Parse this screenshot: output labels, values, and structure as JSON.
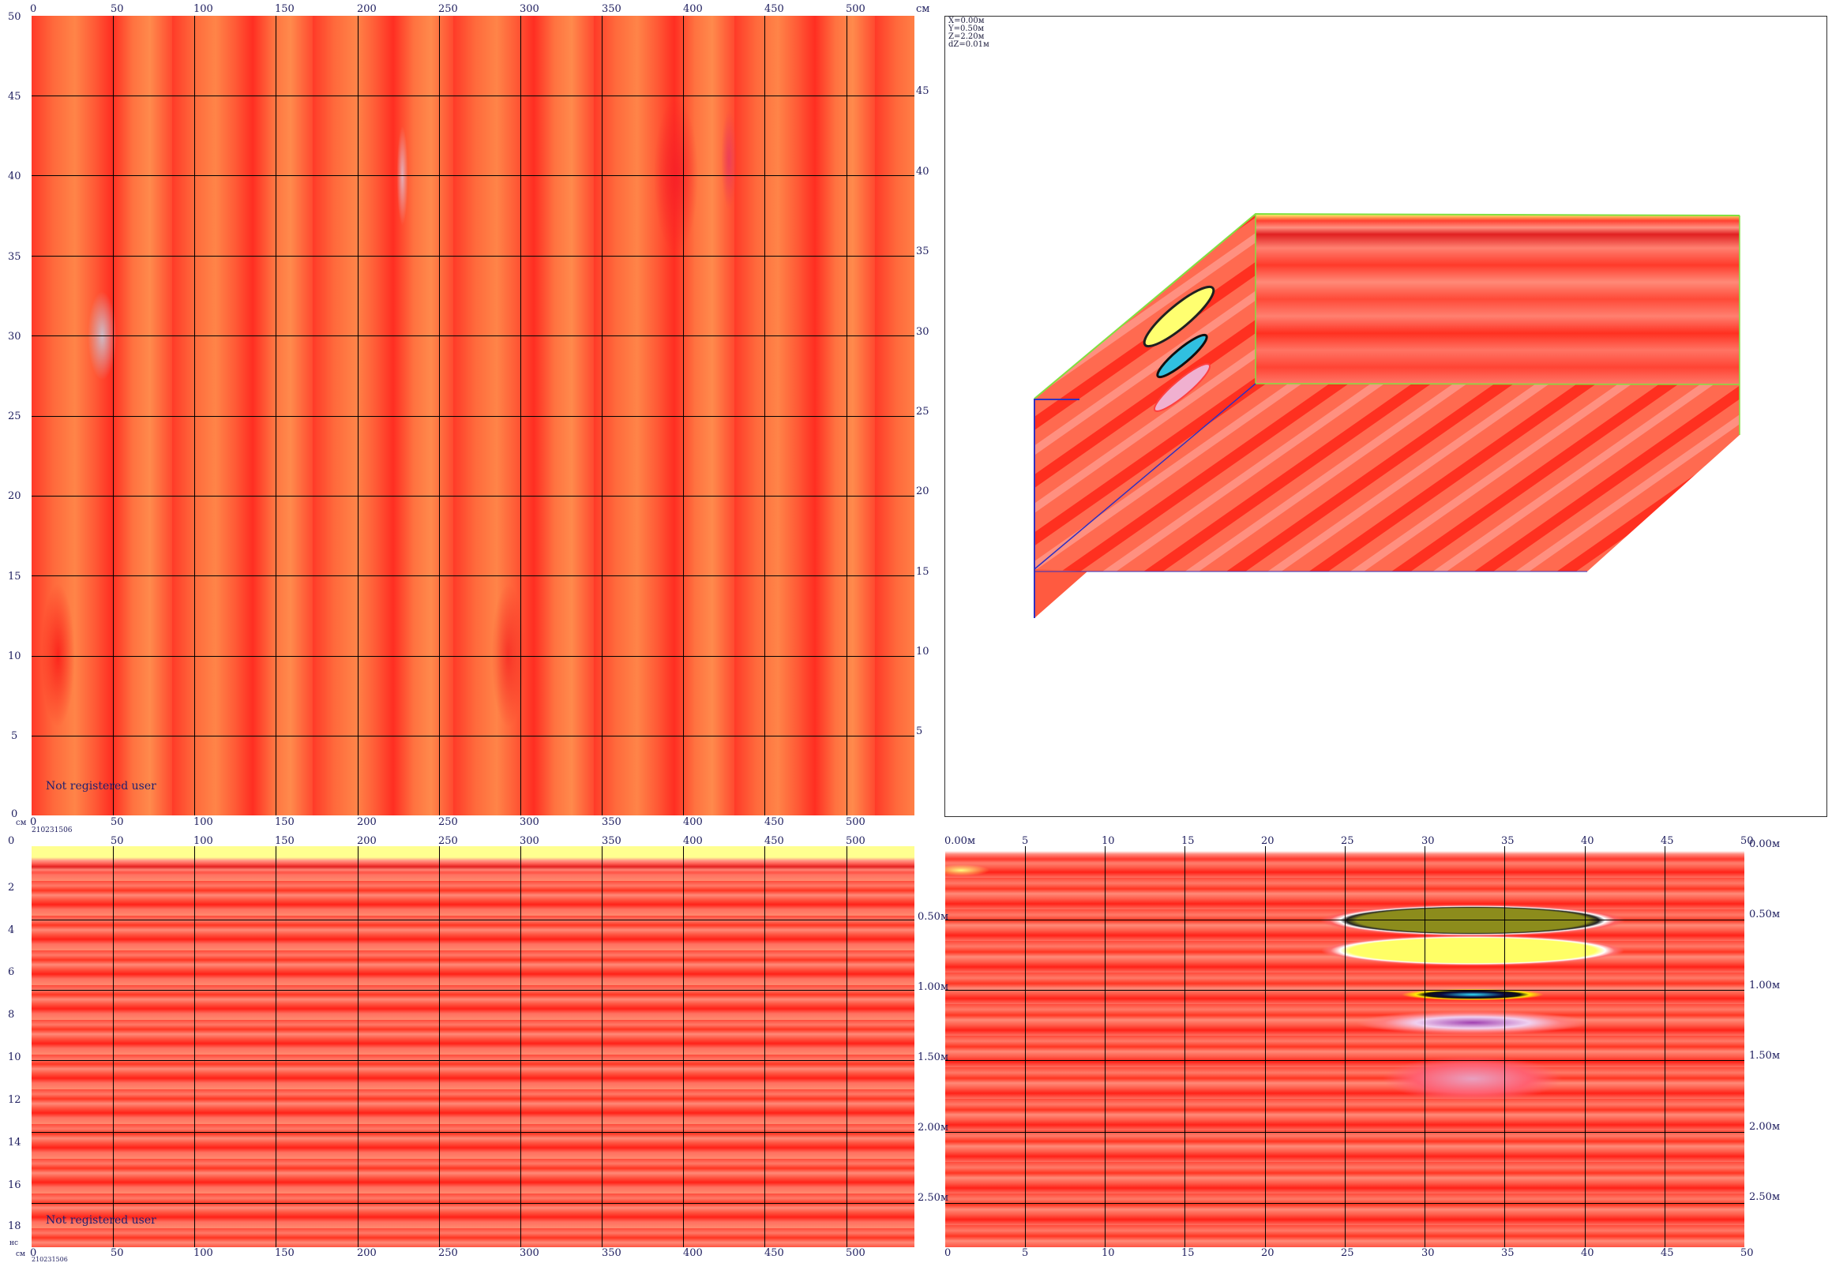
{
  "views": {
    "plan": {
      "note": "Not registered user",
      "x_ticks_top": [
        "0",
        "50",
        "100",
        "150",
        "200",
        "250",
        "300",
        "350",
        "400",
        "450",
        "500"
      ],
      "x_ticks_bottom": [
        "0",
        "50",
        "100",
        "150",
        "200",
        "250",
        "300",
        "350",
        "400",
        "450",
        "500"
      ],
      "y_ticks_left": [
        "50",
        "45",
        "40",
        "35",
        "30",
        "25",
        "20",
        "15",
        "10",
        "5",
        "0"
      ],
      "y_ticks_right": [
        "45",
        "40",
        "35",
        "30",
        "25",
        "20",
        "15",
        "10",
        "5"
      ],
      "unit_left": "см",
      "unit_top_right": "см",
      "file_id": "210231506"
    },
    "view3d": {
      "readout": [
        "X=0.00м",
        "Y=0.50м",
        "Z=2.20м",
        "dZ=0.01м"
      ]
    },
    "bscan": {
      "note": "Not registered user",
      "x_ticks_top": [
        "0",
        "50",
        "100",
        "150",
        "200",
        "250",
        "300",
        "350",
        "400",
        "450",
        "500"
      ],
      "x_ticks_bottom": [
        "0",
        "50",
        "100",
        "150",
        "200",
        "250",
        "300",
        "350",
        "400",
        "450",
        "500"
      ],
      "y_ticks_left": [
        "0",
        "2",
        "4",
        "6",
        "8",
        "10",
        "12",
        "14",
        "16",
        "18"
      ],
      "unit_left_top": "нс",
      "unit_left_bottom": "см",
      "file_id": "210231506"
    },
    "radargram": {
      "x_ticks_top": [
        "0",
        "5",
        "10",
        "15",
        "20",
        "25",
        "30",
        "35",
        "40",
        "45",
        "50"
      ],
      "x_ticks_bottom": [
        "0",
        "5",
        "10",
        "15",
        "20",
        "25",
        "30",
        "35",
        "40",
        "45",
        "50"
      ],
      "depth_left": [
        "0.00м",
        "0.50м",
        "1.00м",
        "1.50м",
        "2.00м",
        "2.50м"
      ],
      "depth_right": [
        "0.00м",
        "0.50м",
        "1.00м",
        "1.50м",
        "2.00м",
        "2.50м"
      ]
    }
  },
  "colors": {
    "background_anomaly": "#ff5a36",
    "grid": "#000000",
    "label": "#202060"
  }
}
